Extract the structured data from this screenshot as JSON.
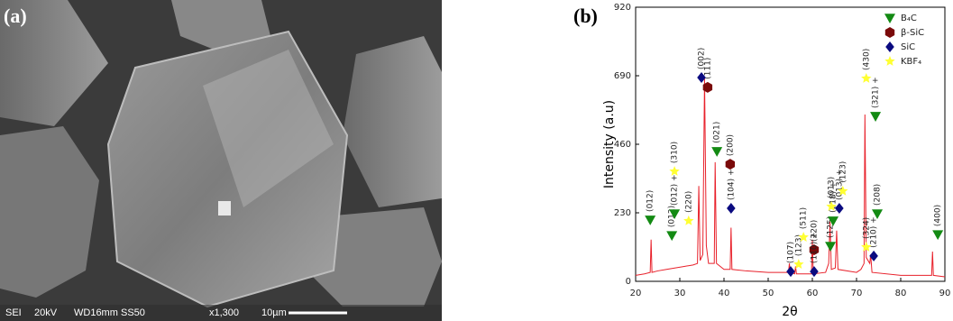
{
  "chart_data": [
    {
      "type": "image",
      "label": "(a)",
      "items": [
        "SEI",
        "20kV",
        "WD16mm",
        "SS50",
        "x1,300",
        "10µm"
      ]
    },
    {
      "type": "line",
      "label": "(b)",
      "x_label": "2θ",
      "y_label": "Intensity (a.u)",
      "xlim": [
        20,
        90
      ],
      "xticks": [
        20,
        30,
        40,
        50,
        60,
        70,
        80,
        90
      ],
      "ylim": [
        0,
        920
      ],
      "yticks": [
        0,
        230,
        460,
        690,
        920
      ],
      "legend": "upper right",
      "pattern": {
        "color": "#e8212b",
        "x": [
          20,
          22,
          23.3,
          23.5,
          23.7,
          25,
          27,
          29,
          31,
          33,
          34,
          34.3,
          34.6,
          35.2,
          35.6,
          36,
          36.5,
          37.8,
          38,
          38.3,
          40,
          41.4,
          41.6,
          41.8,
          45,
          50,
          54.6,
          54.8,
          55,
          56,
          56.2,
          56.4,
          59.8,
          60,
          60.2,
          63,
          63.7,
          64,
          64.3,
          65.2,
          65.5,
          65.8,
          70,
          71,
          71.7,
          71.9,
          72.2,
          73,
          73.2,
          73.5,
          80,
          87,
          87.2,
          87.4,
          90
        ],
        "values": [
          20,
          25,
          30,
          140,
          30,
          35,
          40,
          45,
          50,
          55,
          60,
          320,
          70,
          90,
          680,
          120,
          60,
          60,
          400,
          60,
          40,
          40,
          180,
          40,
          35,
          30,
          30,
          60,
          30,
          25,
          50,
          25,
          25,
          140,
          25,
          30,
          60,
          200,
          40,
          45,
          170,
          40,
          30,
          40,
          60,
          560,
          80,
          60,
          90,
          30,
          20,
          20,
          100,
          20,
          15
        ]
      },
      "series": [
        {
          "name": "B₄C",
          "color": "#138a13",
          "marker": "triangle-down",
          "x": [
            23.3,
            28.2,
            28.8,
            38.4,
            64.1,
            64.7,
            74.3,
            74.7,
            88.4
          ],
          "values": [
            206,
            154,
            227,
            436,
            118,
            203,
            554,
            227,
            157
          ],
          "labels": [
            "(012)",
            "(012)",
            "(012) +",
            "(021)",
            "(125)",
            "(018) +",
            "(321) +",
            "(208)",
            "(400)"
          ]
        },
        {
          "name": "β-SiC",
          "color": "#7a0a0a",
          "marker": "hexagon",
          "x": [
            36.3,
            41.4,
            60.4
          ],
          "values": [
            651,
            393,
            106
          ],
          "labels": [
            "(111)",
            "(200)",
            "(220)"
          ]
        },
        {
          "name": "SiC",
          "color": "#0a0a80",
          "marker": "diamond",
          "x": [
            34.9,
            41.6,
            55.1,
            60.4,
            66.1,
            73.9
          ],
          "values": [
            684,
            245,
            33,
            33,
            245,
            85
          ],
          "labels": [
            "(002)",
            "(104) +",
            "(107)",
            "(110) +",
            "(013) +",
            "(210) +"
          ]
        },
        {
          "name": "KBF₄",
          "color": "#ffff33",
          "marker": "star",
          "x": [
            28.8,
            32.0,
            56.9,
            58.0,
            64.3,
            66.9,
            72.2,
            72.2
          ],
          "values": [
            369,
            203,
            57,
            148,
            251,
            303,
            115,
            681
          ],
          "labels": [
            "(310)",
            "(220)",
            "(123)",
            "(511)",
            "(013)",
            "(123)",
            "(324)",
            "(430)"
          ]
        }
      ]
    }
  ]
}
